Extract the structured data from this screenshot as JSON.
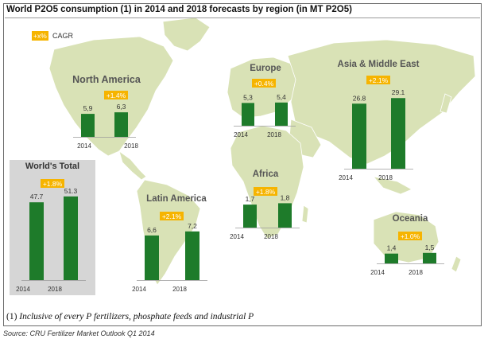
{
  "title": "World P2O5 consumption (1) in 2014 and 2018 forecasts by region (in MT P2O5)",
  "legend": {
    "chip": "+x%",
    "text": "CAGR",
    "chip_color": "#f6b400"
  },
  "colors": {
    "bar": "#1e7b2a",
    "map_land": "#d9e2b6",
    "growth": "#f6b400",
    "world_box": "#d6d6d6"
  },
  "chart_data": [
    {
      "type": "bar",
      "title": "North America",
      "cagr": "+1.4%",
      "categories": [
        "2014",
        "2018"
      ],
      "values": [
        5.9,
        6.3
      ],
      "value_labels": [
        "5,9",
        "6,3"
      ]
    },
    {
      "type": "bar",
      "title": "Europe",
      "cagr": "+0.4%",
      "categories": [
        "2014",
        "2018"
      ],
      "values": [
        5.3,
        5.4
      ],
      "value_labels": [
        "5,3",
        "5,4"
      ]
    },
    {
      "type": "bar",
      "title": "Asia & Middle East",
      "cagr": "+2.1%",
      "categories": [
        "2014",
        "2018"
      ],
      "values": [
        26.8,
        29.1
      ],
      "value_labels": [
        "26.8",
        "29.1"
      ]
    },
    {
      "type": "bar",
      "title": "World's Total",
      "cagr": "+1.8%",
      "categories": [
        "2014",
        "2018"
      ],
      "values": [
        47.7,
        51.3
      ],
      "value_labels": [
        "47.7",
        "51.3"
      ]
    },
    {
      "type": "bar",
      "title": "Latin America",
      "cagr": "+2.1%",
      "categories": [
        "2014",
        "2018"
      ],
      "values": [
        6.6,
        7.2
      ],
      "value_labels": [
        "6,6",
        "7,2"
      ]
    },
    {
      "type": "bar",
      "title": "Africa",
      "cagr": "+1.8%",
      "categories": [
        "2014",
        "2018"
      ],
      "values": [
        1.7,
        1.8
      ],
      "value_labels": [
        "1,7",
        "1,8"
      ]
    },
    {
      "type": "bar",
      "title": "Oceania",
      "cagr": "+1.0%",
      "categories": [
        "2014",
        "2018"
      ],
      "values": [
        1.4,
        1.5
      ],
      "value_labels": [
        "1,4",
        "1,5"
      ]
    }
  ],
  "footnote": {
    "marker": "(1)",
    "text": " Inclusive of every P fertilizers, phosphate feeds and industrial P"
  },
  "source": "Source: CRU Fertilizer Market Outlook Q1 2014"
}
